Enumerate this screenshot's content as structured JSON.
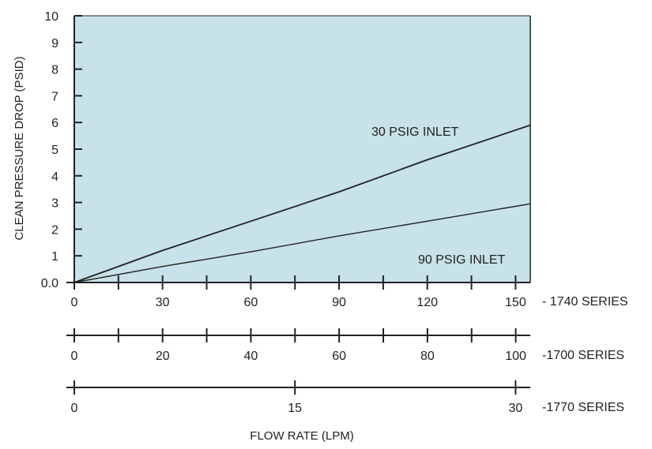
{
  "chart_data": {
    "type": "line",
    "ylabel": "CLEAN PRESSURE DROP (PSID)",
    "xlabel": "FLOW RATE (LPM)",
    "ylim": [
      0,
      10
    ],
    "y_ticks": [
      "0.0",
      "1",
      "2",
      "3",
      "4",
      "5",
      "6",
      "7",
      "8",
      "9",
      "10"
    ],
    "grid": false,
    "x_scales": [
      {
        "name": "- 1740 SERIES",
        "range": [
          0,
          155
        ],
        "labeled_ticks": [
          0,
          30,
          60,
          90,
          120,
          150
        ],
        "minor_step": 15
      },
      {
        "name": "-1700 SERIES",
        "range": [
          0,
          103.3
        ],
        "labeled_ticks": [
          0,
          20,
          40,
          60,
          80,
          100
        ],
        "minor_step": 10
      },
      {
        "name": "-1770 SERIES",
        "range": [
          0,
          31
        ],
        "labeled_ticks": [
          0,
          15,
          30
        ],
        "minor_step": 15
      }
    ],
    "series": [
      {
        "name": "30 PSIG INLET",
        "x_scale": "- 1740 SERIES",
        "x": [
          0,
          30,
          60,
          90,
          120,
          155
        ],
        "y": [
          0,
          1.2,
          2.3,
          3.4,
          4.6,
          5.9
        ]
      },
      {
        "name": "90 PSIG INLET",
        "x_scale": "- 1740 SERIES",
        "x": [
          0,
          30,
          60,
          90,
          120,
          155
        ],
        "y": [
          0,
          0.6,
          1.15,
          1.75,
          2.3,
          2.95
        ]
      }
    ],
    "colors": {
      "plot_background": "#c7e2e8",
      "line": "#222222"
    }
  }
}
